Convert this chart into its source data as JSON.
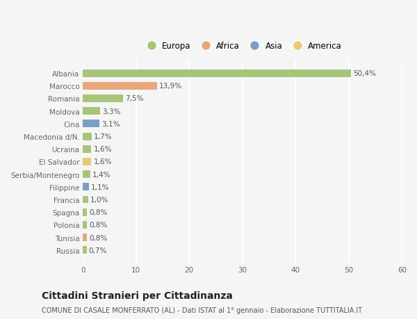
{
  "countries": [
    "Albania",
    "Marocco",
    "Romania",
    "Moldova",
    "Cina",
    "Macedonia d/N.",
    "Ucraina",
    "El Salvador",
    "Serbia/Montenegro",
    "Filippine",
    "Francia",
    "Spagna",
    "Polonia",
    "Tunisia",
    "Russia"
  ],
  "values": [
    50.4,
    13.9,
    7.5,
    3.3,
    3.1,
    1.7,
    1.6,
    1.6,
    1.4,
    1.1,
    1.0,
    0.8,
    0.8,
    0.8,
    0.7
  ],
  "labels": [
    "50,4%",
    "13,9%",
    "7,5%",
    "3,3%",
    "3,1%",
    "1,7%",
    "1,6%",
    "1,6%",
    "1,4%",
    "1,1%",
    "1,0%",
    "0,8%",
    "0,8%",
    "0,8%",
    "0,7%"
  ],
  "colors": [
    "#a8c47a",
    "#e8a87c",
    "#a8c47a",
    "#a8c47a",
    "#7a9fc4",
    "#a8c47a",
    "#a8c47a",
    "#e8c87a",
    "#a8c47a",
    "#7a9fc4",
    "#a8c47a",
    "#a8c47a",
    "#a8c47a",
    "#e8a87c",
    "#a8c47a"
  ],
  "legend_labels": [
    "Europa",
    "Africa",
    "Asia",
    "America"
  ],
  "legend_colors": [
    "#a8c47a",
    "#e8a87c",
    "#7a9fc4",
    "#e8c87a"
  ],
  "xlim": [
    0,
    60
  ],
  "xticks": [
    0,
    10,
    20,
    30,
    40,
    50,
    60
  ],
  "title": "Cittadini Stranieri per Cittadinanza",
  "subtitle": "COMUNE DI CASALE MONFERRATO (AL) - Dati ISTAT al 1° gennaio - Elaborazione TUTTITALIA.IT",
  "bg_color": "#f5f5f5",
  "bar_height": 0.6,
  "grid_color": "#ffffff",
  "label_fontsize": 7.5,
  "tick_fontsize": 7.5,
  "legend_fontsize": 8.5,
  "title_fontsize": 10,
  "subtitle_fontsize": 7,
  "label_color": "#555555",
  "tick_color": "#666666"
}
